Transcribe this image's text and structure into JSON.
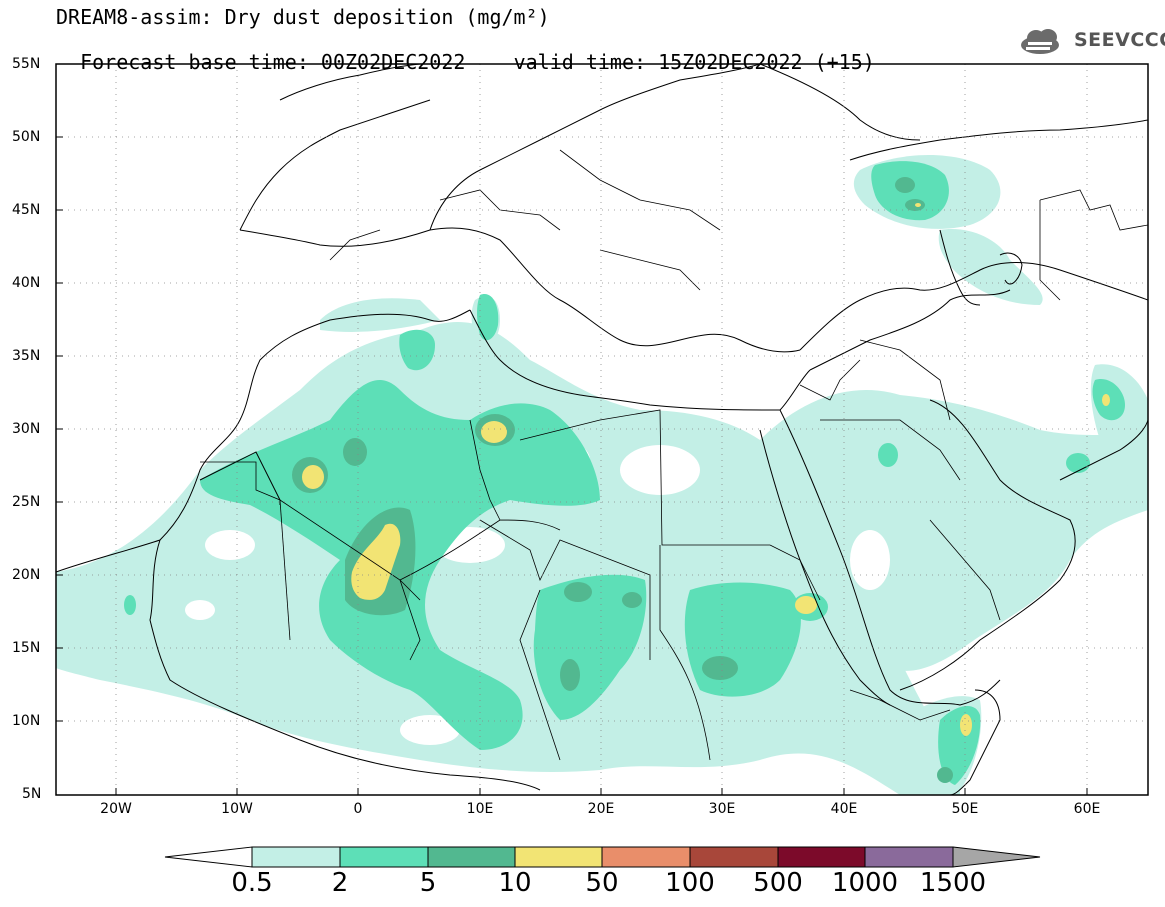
{
  "title": {
    "line1": "DREAM8-assim: Dry dust deposition (mg/m²)",
    "line2_left": "Forecast base time: 00Z02DEC2022",
    "line2_right": "valid time: 15Z02DEC2022 (+15)"
  },
  "logo": {
    "text": "SEEVCCC",
    "icon": "cloud-icon"
  },
  "axes": {
    "lat_labels": [
      "55N",
      "50N",
      "45N",
      "40N",
      "35N",
      "30N",
      "25N",
      "20N",
      "15N",
      "10N",
      "5N"
    ],
    "lon_labels": [
      "20W",
      "10W",
      "0",
      "10E",
      "20E",
      "30E",
      "40E",
      "50E",
      "60E"
    ],
    "lat_range": [
      5,
      55
    ],
    "lon_range": [
      -25,
      65
    ],
    "grid": "dotted"
  },
  "colorbar": {
    "labels": [
      "0.5",
      "2",
      "5",
      "10",
      "50",
      "100",
      "500",
      "1000",
      "1500"
    ],
    "colors": [
      "#c3efe6",
      "#5ddfb7",
      "#52b890",
      "#f2e474",
      "#e98e6a",
      "#a8473a",
      "#7c0a2a",
      "#8a6a9b",
      "#a6a6a6"
    ],
    "under_color": "#ffffff",
    "over_color": "#a6a6a6"
  }
}
